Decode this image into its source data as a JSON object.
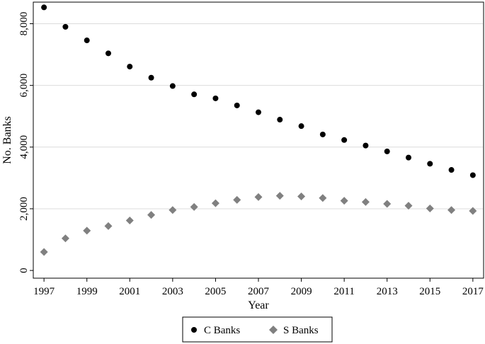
{
  "chart_data": {
    "type": "scatter",
    "title": "",
    "xlabel": "Year",
    "ylabel": "No. Banks",
    "xlim": [
      1996.5,
      2017.5
    ],
    "ylim": [
      -250,
      8700
    ],
    "xticks": [
      1997,
      1999,
      2001,
      2003,
      2005,
      2007,
      2009,
      2011,
      2013,
      2015,
      2017
    ],
    "xtick_labels": [
      "1997",
      "1999",
      "2001",
      "2003",
      "2005",
      "2007",
      "2009",
      "2011",
      "2013",
      "2015",
      "2017"
    ],
    "yticks": [
      0,
      2000,
      4000,
      6000,
      8000
    ],
    "ytick_labels": [
      "0",
      "2,000",
      "4,000",
      "6,000",
      "8,000"
    ],
    "grid": "horizontal",
    "legend_position": "bottom",
    "x": [
      1997,
      1998,
      1999,
      2000,
      2001,
      2002,
      2003,
      2004,
      2005,
      2006,
      2007,
      2008,
      2009,
      2010,
      2011,
      2012,
      2013,
      2014,
      2015,
      2016,
      2017
    ],
    "series": [
      {
        "name": "C Banks",
        "marker": "circle",
        "color": "#000000",
        "values": [
          8530,
          7900,
          7460,
          7040,
          6610,
          6250,
          5980,
          5710,
          5580,
          5350,
          5130,
          4890,
          4680,
          4410,
          4230,
          4050,
          3860,
          3660,
          3460,
          3260,
          3090
        ]
      },
      {
        "name": "S Banks",
        "marker": "diamond",
        "color": "#808080",
        "values": [
          600,
          1040,
          1290,
          1440,
          1620,
          1800,
          1960,
          2060,
          2180,
          2290,
          2380,
          2420,
          2400,
          2350,
          2260,
          2220,
          2160,
          2100,
          2010,
          1960,
          1930
        ]
      }
    ]
  }
}
